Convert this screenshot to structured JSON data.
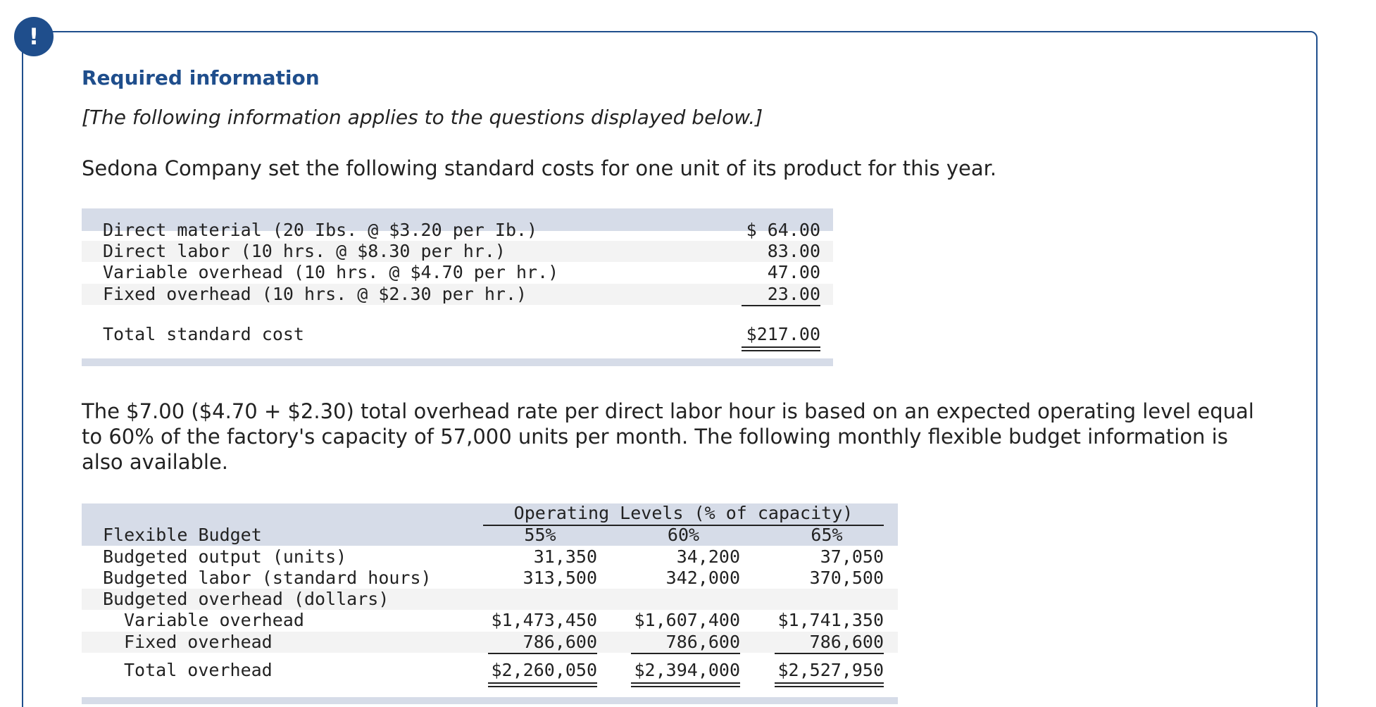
{
  "header": {
    "badge": "!",
    "title": "Required information",
    "note": "[The following information applies to the questions displayed below.]"
  },
  "intro": "Sedona Company set the following standard costs for one unit of its product for this year.",
  "standard_costs": {
    "rows": [
      [
        "Direct material (20 Ibs. @ $3.20 per Ib.)",
        "$ 64.00"
      ],
      [
        "Direct labor (10 hrs. @ $8.30 per hr.)",
        "83.00"
      ],
      [
        "Variable overhead (10 hrs. @ $4.70 per hr.)",
        "47.00"
      ],
      [
        "Fixed overhead (10 hrs. @ $2.30 per hr.)",
        "23.00"
      ]
    ],
    "total": [
      "Total standard cost",
      "$217.00"
    ]
  },
  "paragraph": "The $7.00 ($4.70 + $2.30) total overhead rate per direct labor hour is based on an expected operating level equal to 60% of the factory's capacity of 57,000 units per month. The following monthly flexible budget information is also available.",
  "flexible_budget": {
    "group_header": "Operating Levels (% of capacity)",
    "label_header": "Flexible Budget",
    "columns": [
      "55%",
      "60%",
      "65%"
    ],
    "rows": [
      {
        "label": "Budgeted output (units)",
        "values": [
          "31,350",
          "34,200",
          "37,050"
        ]
      },
      {
        "label": "Budgeted labor (standard hours)",
        "values": [
          "313,500",
          "342,000",
          "370,500"
        ]
      },
      {
        "label": "Budgeted overhead (dollars)"
      },
      {
        "label": "Variable overhead",
        "values": [
          "$1,473,450",
          "$1,607,400",
          "$1,741,350"
        ]
      },
      {
        "label": "Fixed overhead",
        "values": [
          "786,600",
          "786,600",
          "786,600"
        ]
      }
    ],
    "total": {
      "label": "Total overhead",
      "values": [
        "$2,260,050",
        "$2,394,000",
        "$2,527,950"
      ]
    }
  }
}
